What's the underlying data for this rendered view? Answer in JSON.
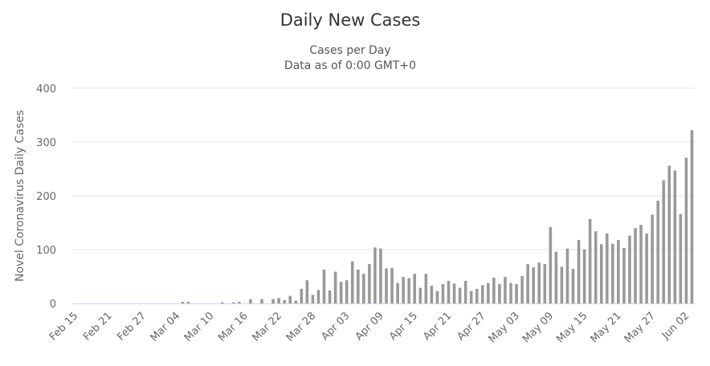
{
  "chart_data": {
    "type": "bar",
    "title": "Daily New Cases",
    "subtitle": [
      "Cases per Day",
      "Data as of 0:00 GMT+0"
    ],
    "y_label": "Novel Coronavirus Daily Cases",
    "color": "#999999",
    "grid": true,
    "ylim": [
      0,
      400
    ],
    "yticks": [
      0,
      100,
      200,
      300,
      400
    ],
    "categories": [
      "Feb 15",
      null,
      null,
      null,
      null,
      null,
      "Feb 21",
      null,
      null,
      null,
      null,
      null,
      "Feb 27",
      null,
      null,
      null,
      null,
      null,
      "Mar 04",
      null,
      null,
      null,
      null,
      null,
      "Mar 10",
      null,
      null,
      null,
      null,
      null,
      "Mar 16",
      null,
      null,
      null,
      null,
      null,
      "Mar 22",
      null,
      null,
      null,
      null,
      null,
      "Mar 28",
      null,
      null,
      null,
      null,
      null,
      "Apr 03",
      null,
      null,
      null,
      null,
      null,
      "Apr 09",
      null,
      null,
      null,
      null,
      null,
      "Apr 15",
      null,
      null,
      null,
      null,
      null,
      "Apr 21",
      null,
      null,
      null,
      null,
      null,
      "Apr 27",
      null,
      null,
      null,
      null,
      null,
      "May 03",
      null,
      null,
      null,
      null,
      null,
      "May 09",
      null,
      null,
      null,
      null,
      null,
      "May 15",
      null,
      null,
      null,
      null,
      null,
      "May 21",
      null,
      null,
      null,
      null,
      null,
      "May 27",
      null,
      null,
      null,
      null,
      null,
      "Jun 02",
      null
    ],
    "values": [
      0,
      0,
      0,
      0,
      0,
      0,
      0,
      0,
      0,
      0,
      0,
      0,
      0,
      0,
      0,
      0,
      0,
      0,
      0,
      3,
      3,
      0,
      0,
      0,
      0,
      0,
      2,
      0,
      2,
      3,
      0,
      8,
      0,
      8,
      0,
      8,
      10,
      6,
      14,
      5,
      27,
      43,
      16,
      25,
      63,
      24,
      59,
      40,
      43,
      78,
      63,
      55,
      73,
      104,
      102,
      65,
      66,
      38,
      49,
      47,
      55,
      29,
      55,
      33,
      23,
      36,
      42,
      37,
      29,
      42,
      23,
      27,
      34,
      38,
      48,
      36,
      49,
      38,
      36,
      51,
      73,
      67,
      76,
      73,
      142,
      96,
      68,
      102,
      64,
      118,
      100,
      157,
      134,
      110,
      130,
      111,
      118,
      103,
      126,
      140,
      146,
      130,
      165,
      191,
      229,
      256,
      247,
      166,
      271,
      322
    ]
  }
}
